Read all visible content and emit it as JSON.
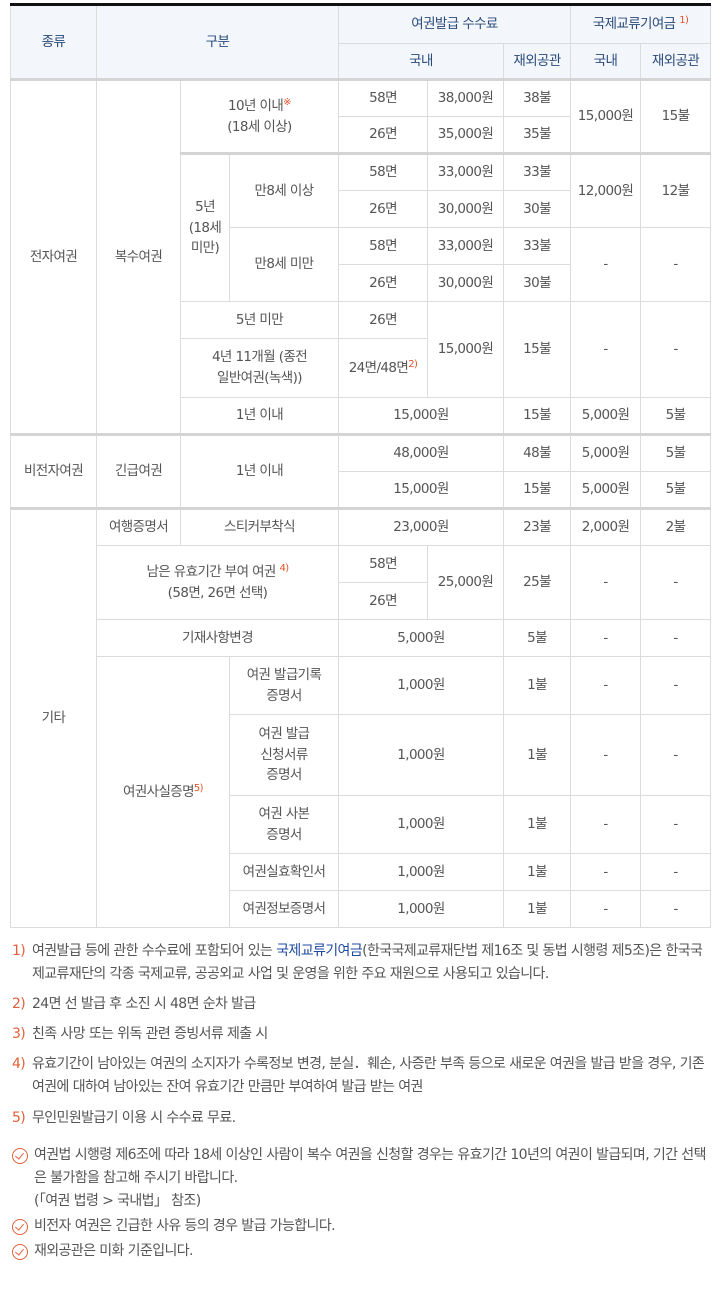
{
  "header": {
    "kind": "종류",
    "category": "구분",
    "fee": "여권발급 수수료",
    "contrib": "국제교류기여금",
    "contrib_sup": "1)",
    "domestic": "국내",
    "overseas": "재외공관",
    "domestic2": "국내",
    "overseas2": "재외공관"
  },
  "rows": [
    {
      "cells": [
        {
          "t": "전자여권",
          "rs": 9
        },
        {
          "t": "복수여권",
          "rs": 9
        },
        {
          "t": "10년 이내",
          "sup": "※",
          "t2": "\n(18세 이상)",
          "rs": 2,
          "cs": 2
        },
        {
          "t": "58면"
        },
        {
          "t": "38,000원"
        },
        {
          "t": "38불"
        },
        {
          "t": "15,000원",
          "rs": 2
        },
        {
          "t": "15불",
          "rs": 2
        }
      ],
      "thick": true
    },
    {
      "cells": [
        {
          "t": "26면"
        },
        {
          "t": "35,000원"
        },
        {
          "t": "35불"
        }
      ]
    },
    {
      "cells": [
        {
          "t": "5년\n(18세\n미만)",
          "rs": 4
        },
        {
          "t": "만8세 이상",
          "rs": 2
        },
        {
          "t": "58면"
        },
        {
          "t": "33,000원"
        },
        {
          "t": "33불"
        },
        {
          "t": "12,000원",
          "rs": 2
        },
        {
          "t": "12불",
          "rs": 2
        }
      ],
      "thick": true
    },
    {
      "cells": [
        {
          "t": "26면"
        },
        {
          "t": "30,000원"
        },
        {
          "t": "30불"
        }
      ]
    },
    {
      "cells": [
        {
          "t": "만8세 미만",
          "rs": 2
        },
        {
          "t": "58면"
        },
        {
          "t": "33,000원"
        },
        {
          "t": "33불"
        },
        {
          "t": "-",
          "rs": 2
        },
        {
          "t": "-",
          "rs": 2
        }
      ]
    },
    {
      "cells": [
        {
          "t": "26면"
        },
        {
          "t": "30,000원"
        },
        {
          "t": "30불"
        }
      ]
    },
    {
      "cells": [
        {
          "t": "5년 미만",
          "cs": 2
        },
        {
          "t": "26면"
        },
        {
          "t": "15,000원",
          "rs": 2
        },
        {
          "t": "15불",
          "rs": 2
        },
        {
          "t": "-",
          "rs": 2
        },
        {
          "t": "-",
          "rs": 2
        }
      ]
    },
    {
      "cells": [
        {
          "t": "4년 11개월 (종전\n일반여권(녹색))",
          "cs": 2
        },
        {
          "t": "24면/48면",
          "sup": "2)"
        }
      ],
      "h": 59
    },
    {
      "cells": [
        {
          "t": "1년 이내",
          "cs": 2
        },
        {
          "t": "15,000원",
          "cs": 2
        },
        {
          "t": "15불"
        },
        {
          "t": "5,000원"
        },
        {
          "t": "5불"
        }
      ]
    },
    {
      "cells": [
        {
          "t": "비전자여권",
          "rs": 2
        },
        {
          "t": "긴급여권",
          "rs": 2
        },
        {
          "t": "1년 이내",
          "rs": 2,
          "cs": 2
        },
        {
          "t": "48,000원",
          "cs": 2
        },
        {
          "t": "48불"
        },
        {
          "t": "5,000원"
        },
        {
          "t": "5불"
        }
      ],
      "thick": true
    },
    {
      "cells": [
        {
          "t": "15,000원",
          "cs": 2
        },
        {
          "t": "15불"
        },
        {
          "t": "5,000원"
        },
        {
          "t": "5불"
        }
      ]
    },
    {
      "cells": [
        {
          "t": "기타",
          "rs": 9
        },
        {
          "t": "여행증명서"
        },
        {
          "t": "스티커부착식",
          "cs": 2
        },
        {
          "t": "23,000원",
          "cs": 2
        },
        {
          "t": "23불"
        },
        {
          "t": "2,000원"
        },
        {
          "t": "2불"
        }
      ],
      "thick": true
    },
    {
      "cells": [
        {
          "t": "남은 유효기간 부여 여권 ",
          "sup": "4)",
          "t2": "\n(58면, 26면 선택)",
          "rs": 2,
          "cs": 3
        },
        {
          "t": "58면"
        },
        {
          "t": "25,000원",
          "rs": 2
        },
        {
          "t": "25불",
          "rs": 2
        },
        {
          "t": "-",
          "rs": 2
        },
        {
          "t": "-",
          "rs": 2
        }
      ]
    },
    {
      "cells": [
        {
          "t": "26면"
        }
      ]
    },
    {
      "cells": [
        {
          "t": "기재사항변경",
          "cs": 3
        },
        {
          "t": "5,000원",
          "cs": 2
        },
        {
          "t": "5불"
        },
        {
          "t": "-"
        },
        {
          "t": "-"
        }
      ]
    },
    {
      "cells": [
        {
          "t": "여권사실증명",
          "sup": "5)",
          "rs": 5,
          "cs": 2
        },
        {
          "t": "여권 발급기록\n증명서"
        },
        {
          "t": "1,000원",
          "cs": 2
        },
        {
          "t": "1불"
        },
        {
          "t": "-"
        },
        {
          "t": "-"
        }
      ],
      "h": 58
    },
    {
      "cells": [
        {
          "t": "여권 발급\n신청서류\n증명서"
        },
        {
          "t": "1,000원",
          "cs": 2
        },
        {
          "t": "1불"
        },
        {
          "t": "-"
        },
        {
          "t": "-"
        }
      ],
      "h": 81
    },
    {
      "cells": [
        {
          "t": "여권 사본\n증명서"
        },
        {
          "t": "1,000원",
          "cs": 2
        },
        {
          "t": "1불"
        },
        {
          "t": "-"
        },
        {
          "t": "-"
        }
      ],
      "h": 58
    },
    {
      "cells": [
        {
          "t": "여권실효확인서"
        },
        {
          "t": "1,000원",
          "cs": 2
        },
        {
          "t": "1불"
        },
        {
          "t": "-"
        },
        {
          "t": "-"
        }
      ]
    },
    {
      "cells": [
        {
          "t": "여권정보증명서"
        },
        {
          "t": "1,000원",
          "cs": 2
        },
        {
          "t": "1불"
        },
        {
          "t": "-"
        },
        {
          "t": "-"
        }
      ]
    }
  ],
  "footnotes": [
    {
      "n": "1)",
      "pre": "여권발급 등에 관한 수수료에 포함되어 있는 ",
      "link": "국제교류기여금",
      "post": "(한국국제교류재단법 제16조 및 동법 시행령 제5조)은 한국국제교류재단의 각종 국제교류, 공공외교 사업 및 운영을 위한 주요 재원으로 사용되고 있습니다."
    },
    {
      "n": "2)",
      "pre": "24면 선 발급 후 소진 시 48면 순차 발급"
    },
    {
      "n": "3)",
      "pre": "친족 사망 또는 위독 관련 증빙서류 제출 시"
    },
    {
      "n": "4)",
      "pre": "유효기간이 남아있는 여권의 소지자가 수록정보 변경, 분실．훼손, 사증란 부족 등으로 새로운 여권을 발급 받을 경우, 기존 여권에 대하여 남아있는 잔여 유효기간 만큼만 부여하여 발급 받는 여권"
    },
    {
      "n": "5)",
      "pre": "무인민원발급기 이용 시 수수료 무료."
    }
  ],
  "checks": [
    "여권법 시행령 제6조에 따라 18세 이상인 사람이 복수 여권을 신청할 경우는 유효기간 10년의 여권이 발급되며, 기간 선택은 불가함을 참고해 주시기 바랍니다.\n(「여권 법령 > 국내법」 참조)",
    "비전자 여권은 긴급한 사유 등의 경우 발급 가능합니다.",
    "재외공관은 미화 기준입니다."
  ],
  "colors": {
    "header_bg": "#f3f7fb",
    "header_text": "#2b4a7c",
    "accent": "#e2603a",
    "link": "#1f4aa0"
  }
}
